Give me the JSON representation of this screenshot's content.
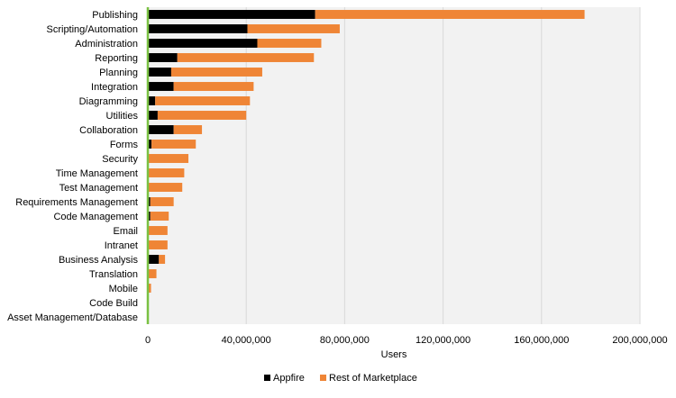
{
  "chart_data": {
    "type": "bar",
    "orientation": "horizontal",
    "stacked": true,
    "title": "",
    "xlabel": "Users",
    "ylabel": "",
    "xlim": [
      0,
      200000000
    ],
    "x_ticks": [
      0,
      40000000,
      80000000,
      120000000,
      160000000,
      200000000
    ],
    "x_tick_labels": [
      "0",
      "40,000,000",
      "80,000,000",
      "120,000,000",
      "160,000,000",
      "200,000,000"
    ],
    "grid": true,
    "legend_position": "bottom",
    "categories": [
      "Publishing",
      "Scripting/Automation",
      "Administration",
      "Reporting",
      "Planning",
      "Integration",
      "Diagramming",
      "Utilities",
      "Collaboration",
      "Forms",
      "Security",
      "Time Management",
      "Test Management",
      "Requirements Management",
      "Code Management",
      "Email",
      "Intranet",
      "Business Analysis",
      "Translation",
      "Mobile",
      "Code Build",
      "Asset Management/Database"
    ],
    "series": [
      {
        "name": "Appfire",
        "color": "#000000",
        "values": [
          68000000,
          40500000,
          44500000,
          12000000,
          9500000,
          10500000,
          3000000,
          4000000,
          10500000,
          1500000,
          0,
          0,
          0,
          1000000,
          1000000,
          0,
          0,
          4500000,
          0,
          0,
          0,
          0
        ]
      },
      {
        "name": "Rest of Marketplace",
        "color": "#ef8536",
        "values": [
          109500000,
          37500000,
          26000000,
          55500000,
          37000000,
          32500000,
          38500000,
          36000000,
          11500000,
          18000000,
          16500000,
          14800000,
          14000000,
          9500000,
          7500000,
          8000000,
          8000000,
          2500000,
          3500000,
          1300000,
          0,
          0
        ]
      }
    ],
    "category_axis_color": "#7ac143"
  }
}
